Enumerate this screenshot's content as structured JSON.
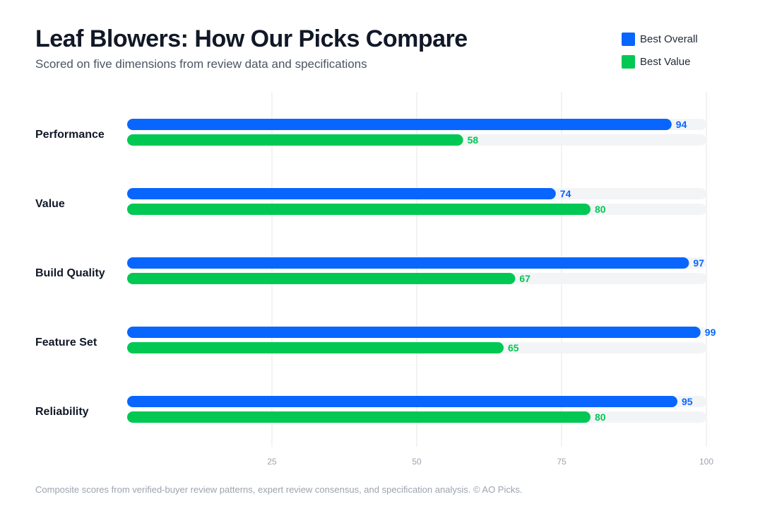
{
  "title": "Leaf Blowers: How Our Picks Compare",
  "subtitle": "Scored on five dimensions from review data and specifications",
  "footer": "Composite scores from verified-buyer review patterns, expert review consensus, and specification analysis. © AO Picks.",
  "legend": [
    {
      "label": "Best Overall",
      "color": "#0866ff"
    },
    {
      "label": "Best Value",
      "color": "#00c853"
    }
  ],
  "chart_data": {
    "type": "bar",
    "orientation": "horizontal",
    "categories": [
      "Performance",
      "Value",
      "Build Quality",
      "Feature Set",
      "Reliability"
    ],
    "series": [
      {
        "name": "Best Overall",
        "color": "#0866ff",
        "values": [
          94,
          74,
          97,
          99,
          95
        ]
      },
      {
        "name": "Best Value",
        "color": "#00c853",
        "values": [
          58,
          80,
          67,
          65,
          80
        ]
      }
    ],
    "xlim": [
      0,
      100
    ],
    "xticks": [
      25,
      50,
      75,
      100
    ],
    "grid": true,
    "legend_position": "top-right",
    "data_labels": true
  }
}
